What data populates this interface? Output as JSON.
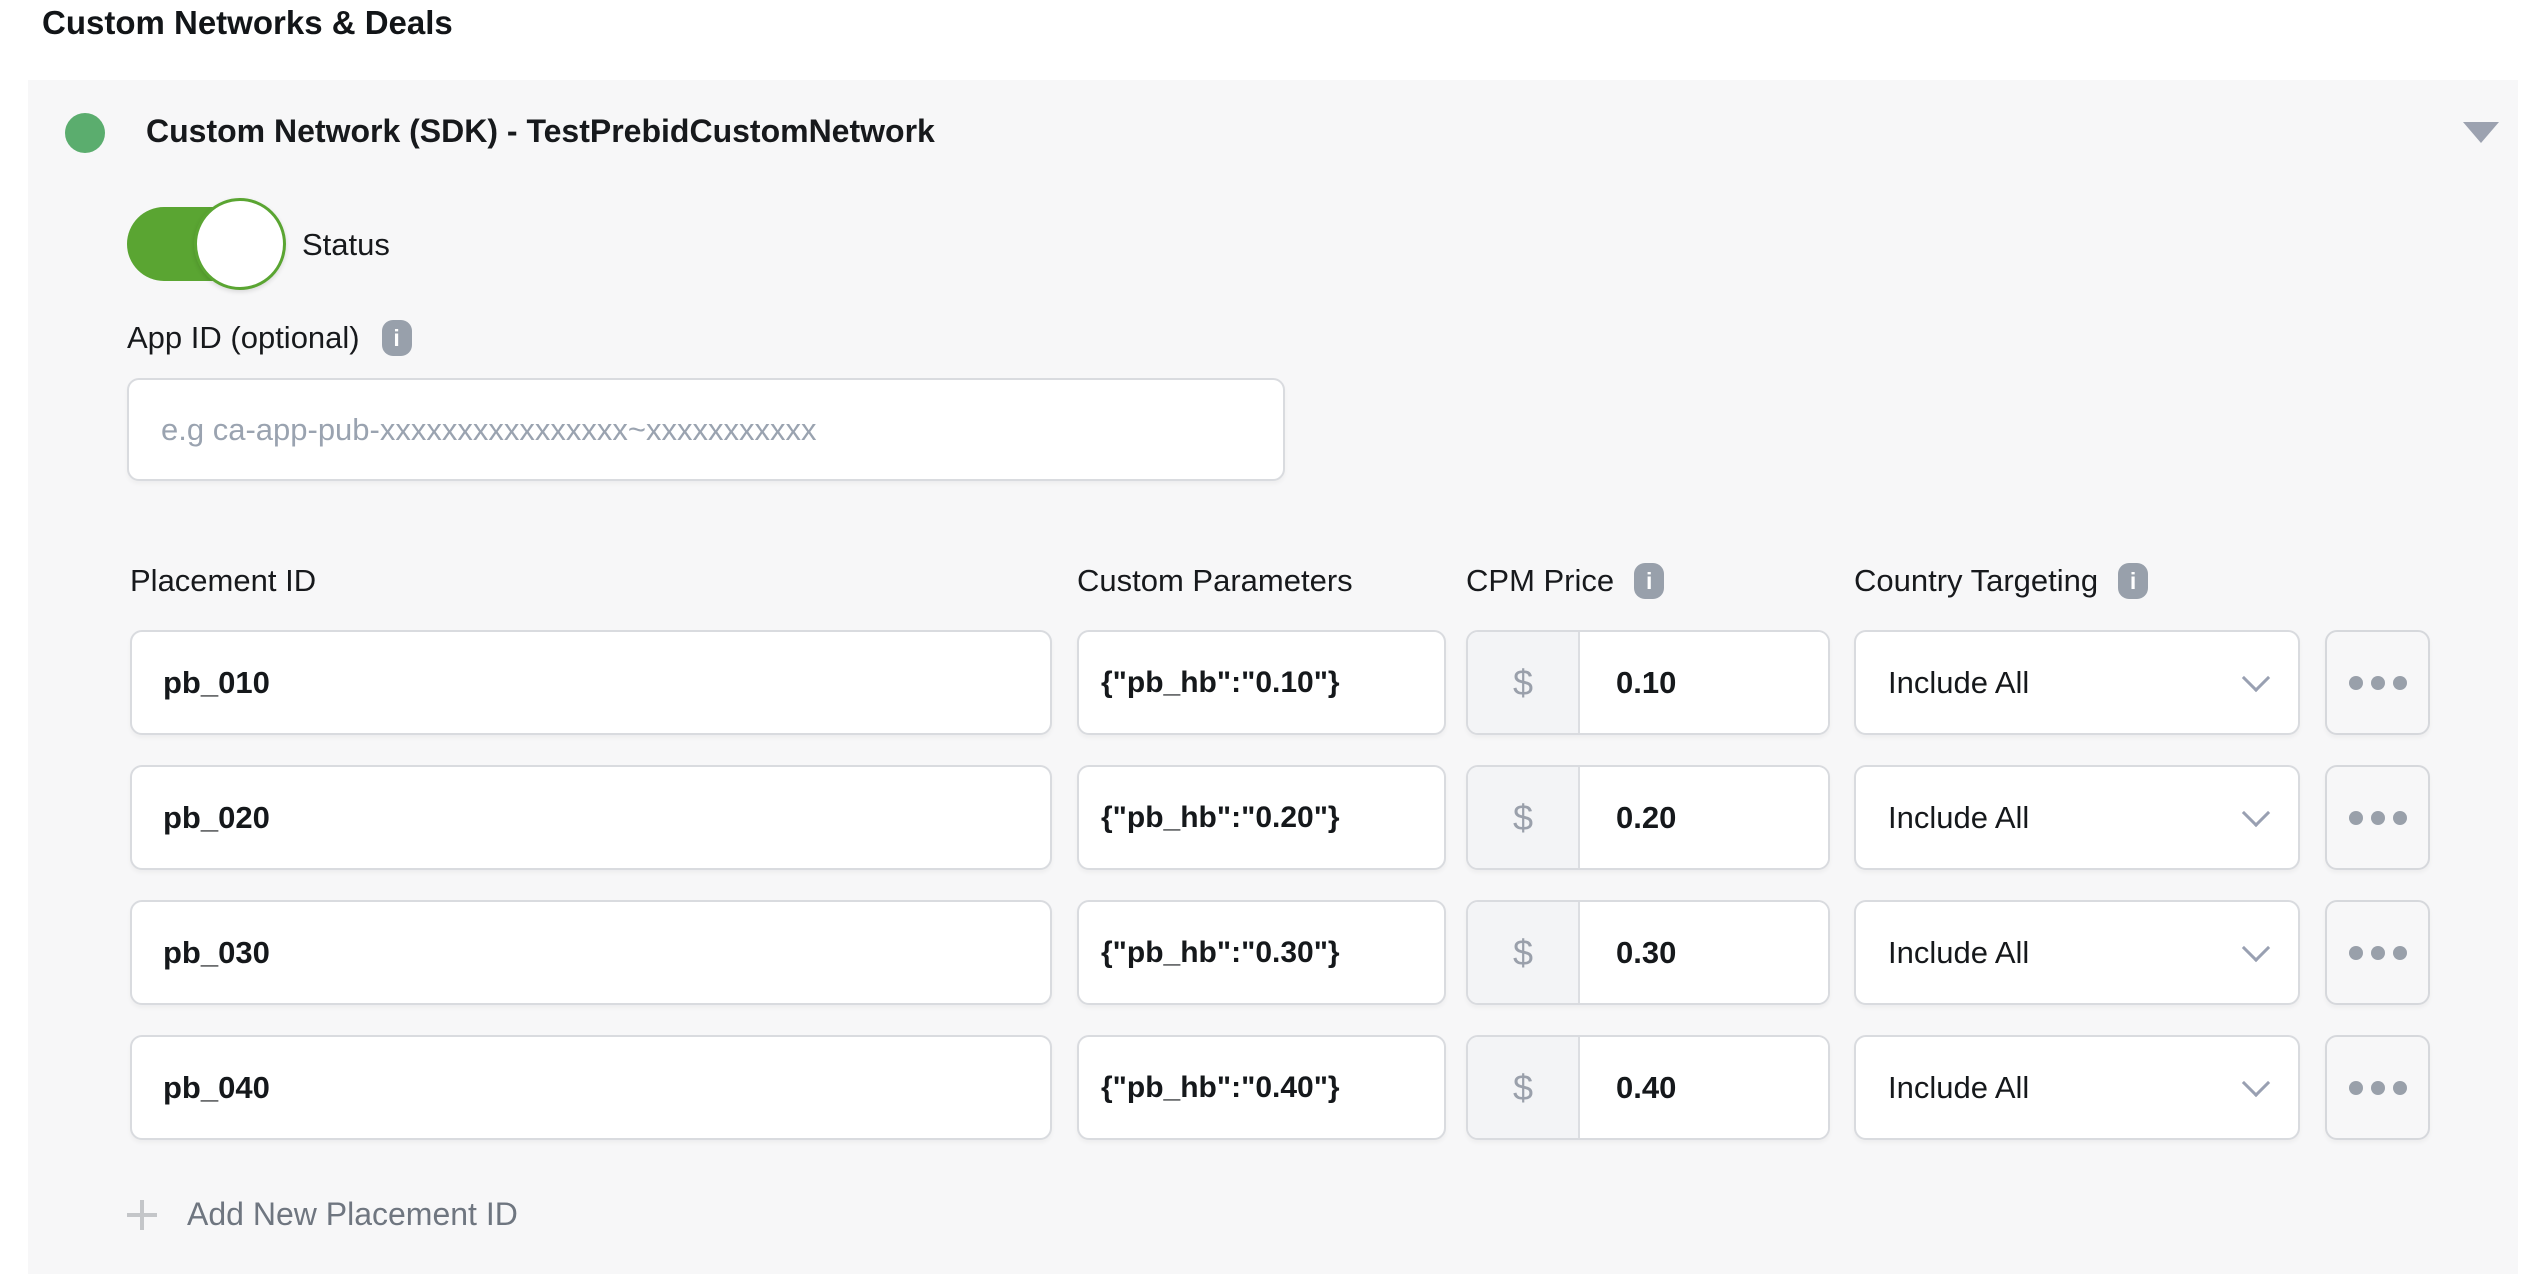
{
  "page": {
    "title": "Custom Networks & Deals"
  },
  "network_card": {
    "title": "Custom Network (SDK) - TestPrebidCustomNetwork",
    "status_label": "Status",
    "status_on": true,
    "app_id": {
      "label": "App ID (optional)",
      "value": "",
      "placeholder": "e.g ca-app-pub-xxxxxxxxxxxxxxxx~xxxxxxxxxxx"
    },
    "table": {
      "headers": {
        "placement_id": "Placement ID",
        "custom_parameters": "Custom Parameters",
        "cpm_price": "CPM Price",
        "country_targeting": "Country Targeting"
      },
      "currency_symbol": "$",
      "rows": [
        {
          "placement_id": "pb_010",
          "custom_parameters": "{\"pb_hb\":\"0.10\"}",
          "cpm_price": "0.10",
          "country_targeting": "Include All"
        },
        {
          "placement_id": "pb_020",
          "custom_parameters": "{\"pb_hb\":\"0.20\"}",
          "cpm_price": "0.20",
          "country_targeting": "Include All"
        },
        {
          "placement_id": "pb_030",
          "custom_parameters": "{\"pb_hb\":\"0.30\"}",
          "cpm_price": "0.30",
          "country_targeting": "Include All"
        },
        {
          "placement_id": "pb_040",
          "custom_parameters": "{\"pb_hb\":\"0.40\"}",
          "cpm_price": "0.40",
          "country_targeting": "Include All"
        }
      ]
    },
    "add_button_label": "Add New Placement ID"
  },
  "icons": {
    "info_glyph": "i"
  },
  "colors": {
    "toggle_green": "#5aa532",
    "status_dot_green": "#5bad6e"
  }
}
